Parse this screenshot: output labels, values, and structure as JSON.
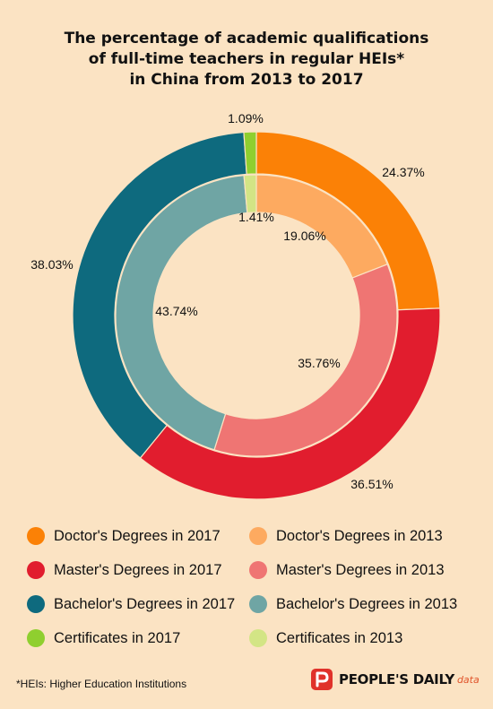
{
  "title": {
    "line1": "The percentage of academic qualifications",
    "line2": "of full-time teachers in regular HEIs*",
    "line3": "in China from 2013 to 2017"
  },
  "chart_data": {
    "type": "pie",
    "subtype": "nested-donut",
    "rings": [
      {
        "name": "2017",
        "position": "outer",
        "slices": [
          {
            "label": "Doctor's Degrees in 2017",
            "value": 24.37,
            "value_label": "24.37%",
            "color": "#fb8106"
          },
          {
            "label": "Master's Degrees in 2017",
            "value": 36.51,
            "value_label": "36.51%",
            "color": "#e11d2e"
          },
          {
            "label": "Bachelor's Degrees in 2017",
            "value": 38.03,
            "value_label": "38.03%",
            "color": "#0e6a7e"
          },
          {
            "label": "Certificates in 2017",
            "value": 1.09,
            "value_label": "1.09%",
            "color": "#8fcf2f"
          }
        ]
      },
      {
        "name": "2013",
        "position": "inner",
        "slices": [
          {
            "label": "Doctor's Degrees in 2013",
            "value": 19.06,
            "value_label": "19.06%",
            "color": "#fdaa60"
          },
          {
            "label": "Master's Degrees in 2013",
            "value": 35.76,
            "value_label": "35.76%",
            "color": "#ef7573"
          },
          {
            "label": "Bachelor's Degrees in 2013",
            "value": 43.74,
            "value_label": "43.74%",
            "color": "#6fa5a4"
          },
          {
            "label": "Certificates in 2013",
            "value": 1.41,
            "value_label": "1.41%",
            "color": "#d3e585"
          }
        ]
      }
    ],
    "legend_position": "bottom"
  },
  "footnote": "*HEIs: Higher Education Institutions",
  "brand": {
    "name": "PEOPLE'S DAILY",
    "suffix": "data"
  }
}
